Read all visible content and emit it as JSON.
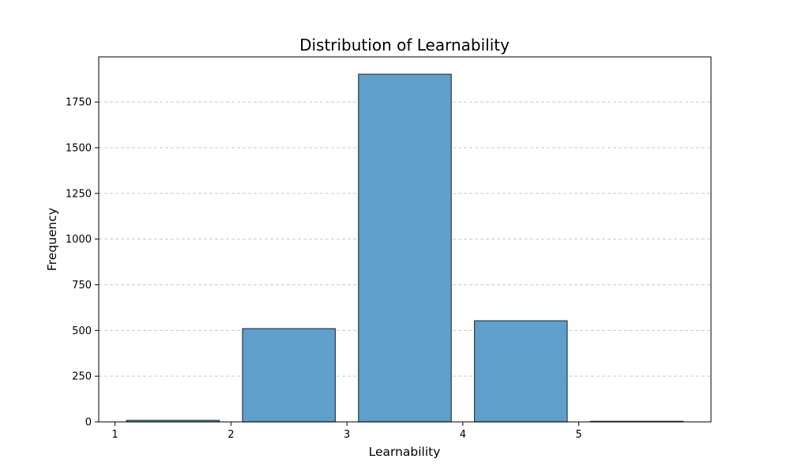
{
  "chart_data": {
    "type": "bar",
    "title": "Distribution of Learnability",
    "xlabel": "Learnability",
    "ylabel": "Frequency",
    "bins": [
      {
        "start": 1,
        "end": 2,
        "value": 8
      },
      {
        "start": 2,
        "end": 3,
        "value": 510
      },
      {
        "start": 3,
        "end": 4,
        "value": 1902
      },
      {
        "start": 4,
        "end": 5,
        "value": 553
      },
      {
        "start": 5,
        "end": 6,
        "value": 3
      }
    ],
    "xticks": [
      1,
      2,
      3,
      4,
      5
    ],
    "yticks": [
      0,
      250,
      500,
      750,
      1000,
      1250,
      1500,
      1750
    ],
    "xlim": [
      0.86,
      6.14
    ],
    "ylim": [
      0,
      1997
    ],
    "grid": "y-dashed",
    "colors": {
      "bar_fill": "#5f9fcc",
      "bar_edge": "#2b3a45",
      "grid": "#c8c8c8"
    }
  }
}
